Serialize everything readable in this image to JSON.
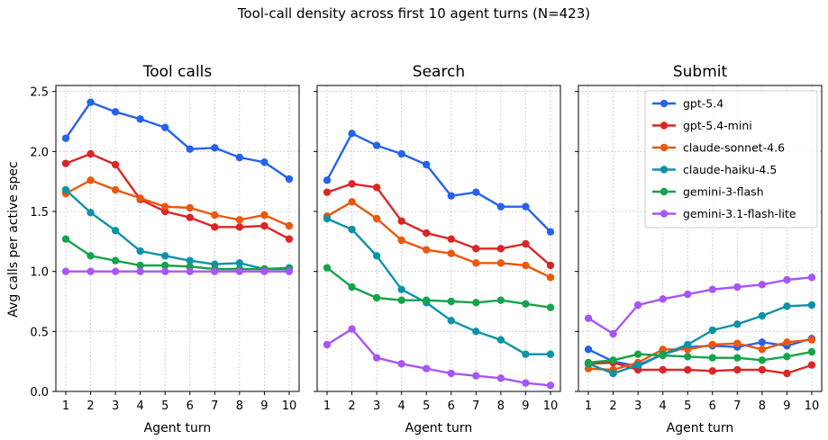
{
  "figure": {
    "title": "Tool-call density across first 10 agent turns (N=423)",
    "ylabel": "Avg calls per active spec"
  },
  "chart_data": [
    {
      "type": "line",
      "title": "Tool calls",
      "xlabel": "Agent turn",
      "ylabel": "Avg calls per active spec",
      "x": [
        1,
        2,
        3,
        4,
        5,
        6,
        7,
        8,
        9,
        10
      ],
      "xlim": [
        0.6,
        10.4
      ],
      "ylim": [
        0,
        2.55
      ],
      "yticks": [
        0.0,
        0.5,
        1.0,
        1.5,
        2.0,
        2.5
      ],
      "grid": true,
      "legend": "none",
      "series": [
        {
          "name": "gpt-5.4",
          "color": "#2563eb",
          "values": [
            2.11,
            2.41,
            2.33,
            2.27,
            2.2,
            2.02,
            2.03,
            1.95,
            1.91,
            1.77
          ]
        },
        {
          "name": "gpt-5.4-mini",
          "color": "#dc2626",
          "values": [
            1.9,
            1.98,
            1.89,
            1.6,
            1.5,
            1.45,
            1.37,
            1.37,
            1.38,
            1.27
          ]
        },
        {
          "name": "claude-sonnet-4.6",
          "color": "#ea580c",
          "values": [
            1.65,
            1.76,
            1.68,
            1.61,
            1.54,
            1.53,
            1.47,
            1.43,
            1.47,
            1.38
          ]
        },
        {
          "name": "claude-haiku-4.5",
          "color": "#0e92a8",
          "values": [
            1.68,
            1.49,
            1.34,
            1.17,
            1.13,
            1.09,
            1.06,
            1.07,
            1.02,
            1.03
          ]
        },
        {
          "name": "gemini-3-flash",
          "color": "#16a34a",
          "values": [
            1.27,
            1.13,
            1.09,
            1.05,
            1.05,
            1.04,
            1.02,
            1.02,
            1.02,
            1.02
          ]
        },
        {
          "name": "gemini-3.1-flash-lite",
          "color": "#a855f7",
          "values": [
            1.0,
            1.0,
            1.0,
            1.0,
            1.0,
            1.0,
            1.0,
            1.0,
            1.0,
            1.0
          ]
        }
      ]
    },
    {
      "type": "line",
      "title": "Search",
      "xlabel": "Agent turn",
      "x": [
        1,
        2,
        3,
        4,
        5,
        6,
        7,
        8,
        9,
        10
      ],
      "xlim": [
        0.6,
        10.4
      ],
      "ylim": [
        0,
        2.55
      ],
      "grid": true,
      "legend": "none",
      "series": [
        {
          "name": "gpt-5.4",
          "color": "#2563eb",
          "values": [
            1.76,
            2.15,
            2.05,
            1.98,
            1.89,
            1.63,
            1.66,
            1.54,
            1.54,
            1.33
          ]
        },
        {
          "name": "gpt-5.4-mini",
          "color": "#dc2626",
          "values": [
            1.66,
            1.73,
            1.7,
            1.42,
            1.32,
            1.27,
            1.19,
            1.19,
            1.23,
            1.05
          ]
        },
        {
          "name": "claude-sonnet-4.6",
          "color": "#ea580c",
          "values": [
            1.46,
            1.58,
            1.44,
            1.26,
            1.18,
            1.15,
            1.07,
            1.07,
            1.05,
            0.95
          ]
        },
        {
          "name": "claude-haiku-4.5",
          "color": "#0e92a8",
          "values": [
            1.44,
            1.35,
            1.13,
            0.85,
            0.74,
            0.59,
            0.5,
            0.43,
            0.31,
            0.31
          ]
        },
        {
          "name": "gemini-3-flash",
          "color": "#16a34a",
          "values": [
            1.03,
            0.87,
            0.78,
            0.76,
            0.76,
            0.75,
            0.74,
            0.76,
            0.73,
            0.7
          ]
        },
        {
          "name": "gemini-3.1-flash-lite",
          "color": "#a855f7",
          "values": [
            0.39,
            0.52,
            0.28,
            0.23,
            0.19,
            0.15,
            0.13,
            0.11,
            0.07,
            0.05
          ]
        }
      ]
    },
    {
      "type": "line",
      "title": "Submit",
      "xlabel": "Agent turn",
      "x": [
        1,
        2,
        3,
        4,
        5,
        6,
        7,
        8,
        9,
        10
      ],
      "xlim": [
        0.6,
        10.4
      ],
      "ylim": [
        0,
        2.55
      ],
      "grid": true,
      "legend": "top-right",
      "series": [
        {
          "name": "gpt-5.4",
          "color": "#2563eb",
          "values": [
            0.35,
            0.25,
            0.21,
            0.31,
            0.37,
            0.38,
            0.37,
            0.41,
            0.38,
            0.44
          ]
        },
        {
          "name": "gpt-5.4-mini",
          "color": "#dc2626",
          "values": [
            0.23,
            0.24,
            0.18,
            0.18,
            0.18,
            0.17,
            0.18,
            0.18,
            0.15,
            0.22
          ]
        },
        {
          "name": "claude-sonnet-4.6",
          "color": "#ea580c",
          "values": [
            0.19,
            0.18,
            0.24,
            0.35,
            0.35,
            0.39,
            0.4,
            0.35,
            0.41,
            0.43
          ]
        },
        {
          "name": "claude-haiku-4.5",
          "color": "#0e92a8",
          "values": [
            0.23,
            0.15,
            0.22,
            0.31,
            0.39,
            0.51,
            0.56,
            0.63,
            0.71,
            0.72
          ]
        },
        {
          "name": "gemini-3-flash",
          "color": "#16a34a",
          "values": [
            0.24,
            0.26,
            0.31,
            0.3,
            0.29,
            0.28,
            0.28,
            0.26,
            0.29,
            0.33
          ]
        },
        {
          "name": "gemini-3.1-flash-lite",
          "color": "#a855f7",
          "values": [
            0.61,
            0.48,
            0.72,
            0.77,
            0.81,
            0.85,
            0.87,
            0.89,
            0.93,
            0.95
          ]
        }
      ]
    }
  ]
}
